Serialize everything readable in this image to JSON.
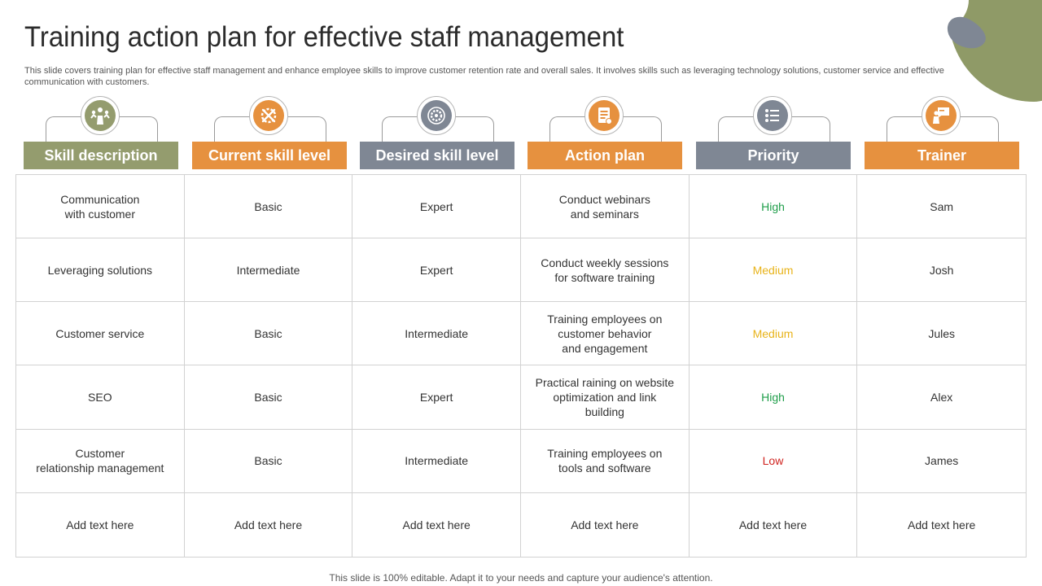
{
  "title": "Training action plan for effective staff management",
  "subtitle": "This slide covers training plan for effective staff management and enhance employee skills to improve customer retention rate and overall sales. It involves skills such as leveraging technology solutions, customer service and effective communication with customers.",
  "columns": [
    {
      "label": "Skill description",
      "color": "#949c6e",
      "icon": "team-success-icon"
    },
    {
      "label": "Current skill level",
      "color": "#e6913f",
      "icon": "tools-gear-icon"
    },
    {
      "label": "Desired skill level",
      "color": "#7f8794",
      "icon": "target-gear-icon"
    },
    {
      "label": "Action plan",
      "color": "#e6913f",
      "icon": "checklist-icon"
    },
    {
      "label": "Priority",
      "color": "#7f8794",
      "icon": "list-icon"
    },
    {
      "label": "Trainer",
      "color": "#e6913f",
      "icon": "presenter-icon"
    }
  ],
  "rows": [
    [
      "Communication\nwith customer",
      "Basic",
      "Expert",
      "Conduct webinars\nand seminars",
      "High",
      "Sam"
    ],
    [
      "Leveraging solutions",
      "Intermediate",
      "Expert",
      "Conduct weekly sessions\nfor software training",
      "Medium",
      "Josh"
    ],
    [
      "Customer service",
      "Basic",
      "Intermediate",
      "Training employees on\ncustomer behavior\nand engagement",
      "Medium",
      "Jules"
    ],
    [
      "SEO",
      "Basic",
      "Expert",
      "Practical raining on website\noptimization and link\nbuilding",
      "High",
      "Alex"
    ],
    [
      "Customer\nrelationship management",
      "Basic",
      "Intermediate",
      "Training employees on\ntools and software",
      "Low",
      "James"
    ],
    [
      "Add text here",
      "Add text here",
      "Add text here",
      "Add text here",
      "Add text here",
      "Add text here"
    ]
  ],
  "priority_colors": {
    "High": "#1f9e4a",
    "Medium": "#e8b319",
    "Low": "#d0231f"
  },
  "footer": "This slide is 100% editable. Adapt it to your needs and capture your audience's attention."
}
